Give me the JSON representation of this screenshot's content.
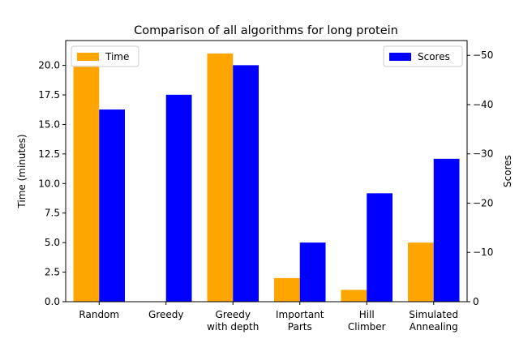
{
  "chart_data": {
    "type": "bar",
    "title": "Comparison of all algorithms for long protein",
    "categories": [
      [
        "Random"
      ],
      [
        "Greedy"
      ],
      [
        "Greedy",
        "with depth"
      ],
      [
        "Important",
        "Parts"
      ],
      [
        "Hill",
        "Climber"
      ],
      [
        "Simulated",
        "Annealing"
      ]
    ],
    "left_axis": {
      "label": "Time (minutes)",
      "ylim": [
        0,
        22.1
      ],
      "ticks": [
        0.0,
        2.5,
        5.0,
        7.5,
        10.0,
        12.5,
        15.0,
        17.5,
        20.0
      ],
      "tick_labels": [
        "0.0",
        "2.5",
        "5.0",
        "7.5",
        "10.0",
        "12.5",
        "15.0",
        "17.5",
        "20.0"
      ]
    },
    "right_axis": {
      "label": "Scores",
      "ylim": [
        0,
        -53
      ],
      "ticks": [
        0,
        -10,
        -20,
        -30,
        -40,
        -50
      ],
      "tick_labels": [
        "0",
        "−10",
        "−20",
        "−30",
        "−40",
        "−50"
      ]
    },
    "series": [
      {
        "name": "Time",
        "axis": "left",
        "color": "#ffa500",
        "values": [
          20.0,
          0.0,
          21.0,
          2.0,
          1.0,
          5.0
        ]
      },
      {
        "name": "Scores",
        "axis": "right",
        "color": "#0000ff",
        "values": [
          -39,
          -42,
          -48,
          -12,
          -22,
          -29
        ]
      }
    ],
    "legend": [
      {
        "label": "Time",
        "placement": "upper-left"
      },
      {
        "label": "Scores",
        "placement": "upper-right"
      }
    ],
    "grid": false
  }
}
